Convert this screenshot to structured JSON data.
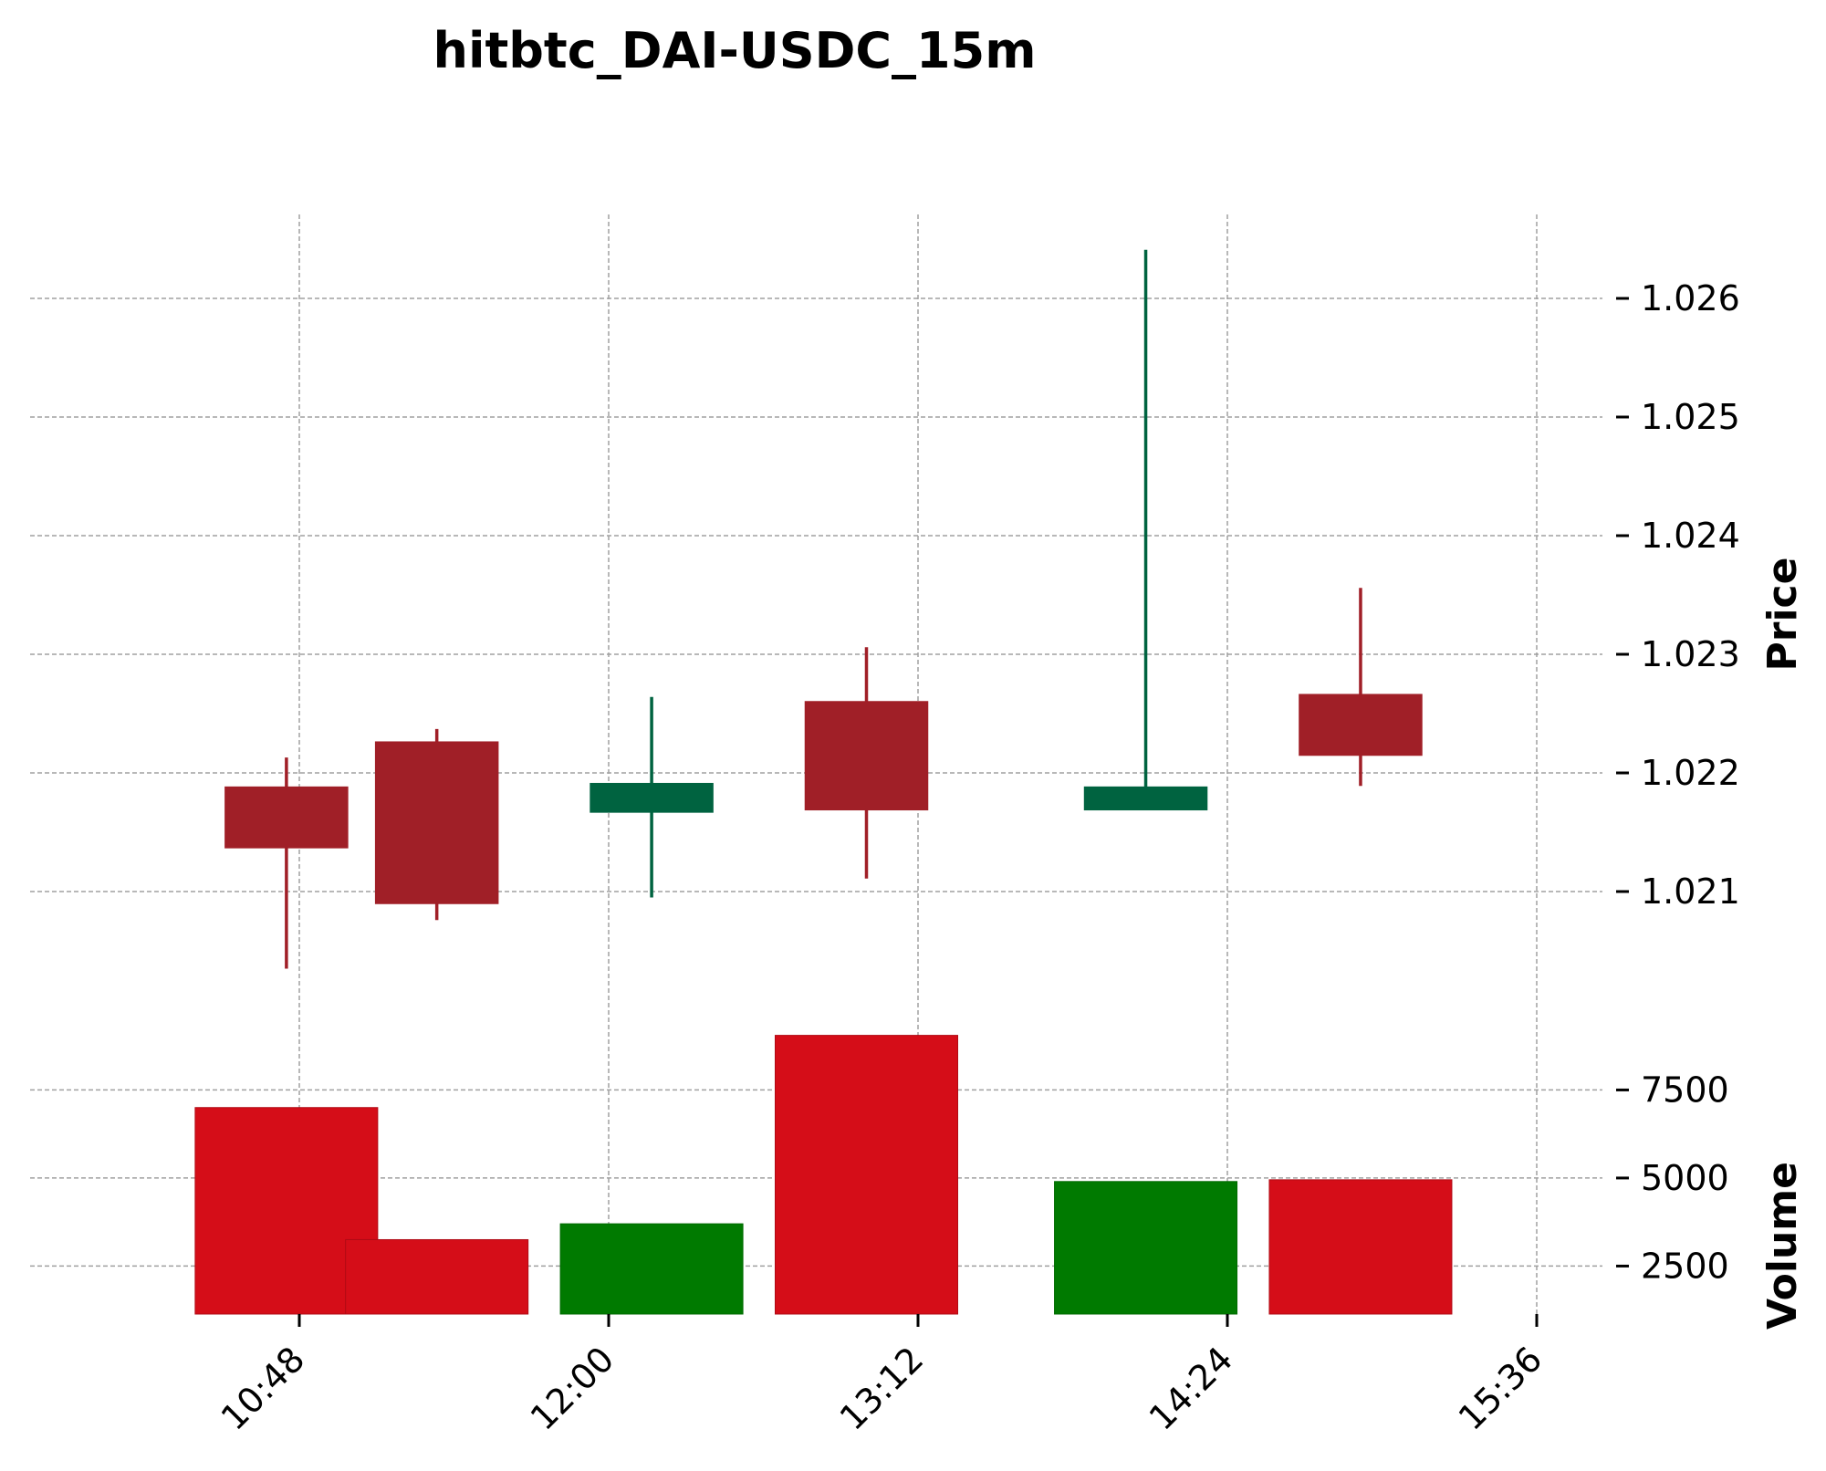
{
  "chart_data": {
    "type": "candlestick",
    "title": "hitbtc_DAI-USDC_15m",
    "xtick_labels": [
      "10:48",
      "12:00",
      "13:12",
      "14:24",
      "15:36"
    ],
    "xtick_minutes": [
      648,
      720,
      792,
      864,
      936
    ],
    "price_axis": {
      "label": "Price",
      "ticks": [
        1.021,
        1.022,
        1.023,
        1.024,
        1.025,
        1.026
      ],
      "tick_labels": [
        "1.021",
        "1.022",
        "1.023",
        "1.024",
        "1.025",
        "1.026"
      ]
    },
    "volume_axis": {
      "label": "Volume",
      "ticks": [
        2500,
        5000,
        7500
      ],
      "tick_labels": [
        "2500",
        "5000",
        "7500"
      ]
    },
    "colors": {
      "up_candle": "#006340",
      "down_candle": "#a01f27",
      "up_volume": "#007a00",
      "down_volume": "#d50d18",
      "grid": "#a0a0a0"
    },
    "candles": [
      {
        "time": "10:45",
        "open": 1.02188,
        "high": 1.02213,
        "low": 1.02035,
        "close": 1.02137,
        "volume": 7000
      },
      {
        "time": "11:20",
        "open": 1.02226,
        "high": 1.02237,
        "low": 1.02076,
        "close": 1.0209,
        "volume": 3250
      },
      {
        "time": "12:10",
        "open": 1.02167,
        "high": 1.02264,
        "low": 1.02095,
        "close": 1.02191,
        "volume": 3700
      },
      {
        "time": "13:00",
        "open": 1.0226,
        "high": 1.02306,
        "low": 1.02111,
        "close": 1.02169,
        "volume": 9050
      },
      {
        "time": "14:05",
        "open": 1.02169,
        "high": 1.02641,
        "low": 1.02169,
        "close": 1.02188,
        "volume": 4900
      },
      {
        "time": "14:55",
        "open": 1.02266,
        "high": 1.02356,
        "low": 1.02189,
        "close": 1.02215,
        "volume": 4950
      }
    ]
  }
}
